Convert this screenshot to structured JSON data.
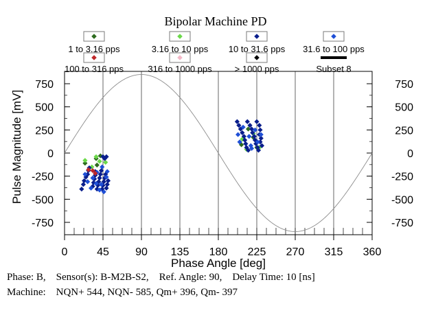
{
  "chart_data": {
    "type": "scatter",
    "title": "Bipolar Machine PD",
    "xlabel": "Phase Angle [deg]",
    "ylabel": "Pulse Magnitude [mV]",
    "xlim": [
      0,
      360
    ],
    "ylim": [
      -850,
      850
    ],
    "x_ticks": [
      0,
      45,
      90,
      135,
      180,
      225,
      270,
      315,
      360
    ],
    "y_ticks": [
      750,
      500,
      250,
      0,
      -250,
      -500,
      -750
    ],
    "x_tick_labels": [
      "0",
      "45",
      "90",
      "135",
      "180",
      "225",
      "270",
      "315",
      "360"
    ],
    "y_tick_labels": [
      "750",
      "500",
      "250",
      "0",
      "-250",
      "-500",
      "-750"
    ],
    "reference_sine": {
      "amplitude": 850,
      "phase_offset_deg": 0,
      "color": "#8c8c8c"
    },
    "legend": [
      {
        "label": "1 to 3.16 pps",
        "color": "#2e6b1f"
      },
      {
        "label": "3.16 to 10 pps",
        "color": "#6cd94a"
      },
      {
        "label": "10 to 31.6 pps",
        "color": "#0a1e8c"
      },
      {
        "label": "31.6 to 100 pps",
        "color": "#1f4fd6"
      },
      {
        "label": "100 to 316 pps",
        "color": "#c0282a"
      },
      {
        "label": "316 to 1000 pps",
        "color": "#f4b8c8"
      },
      {
        "label": "> 1000 pps",
        "color": "#000000"
      },
      {
        "label": "Subset 8",
        "color": "#000000"
      }
    ],
    "series": [
      {
        "name": "1 to 3.16 pps",
        "points": [
          [
            24,
            -110
          ],
          [
            37,
            -60
          ],
          [
            42,
            -30
          ],
          [
            207,
            90
          ],
          [
            225,
            60
          ],
          [
            215,
            260
          ],
          [
            221,
            170
          ],
          [
            38,
            -130
          ]
        ]
      },
      {
        "name": "3.16 to 10 pps",
        "points": [
          [
            24,
            -80
          ],
          [
            32,
            -150
          ],
          [
            41,
            -90
          ],
          [
            48,
            -100
          ],
          [
            37,
            -40
          ],
          [
            213,
            40
          ],
          [
            228,
            60
          ],
          [
            221,
            210
          ],
          [
            208,
            150
          ]
        ]
      },
      {
        "name": "10 to 31.6 pps",
        "points": [
          [
            20,
            -390
          ],
          [
            22,
            -340
          ],
          [
            23,
            -300
          ],
          [
            25,
            -260
          ],
          [
            27,
            -230
          ],
          [
            28,
            -190
          ],
          [
            29,
            -160
          ],
          [
            33,
            -360
          ],
          [
            34,
            -320
          ],
          [
            35,
            -280
          ],
          [
            36,
            -240
          ],
          [
            36,
            -200
          ],
          [
            38,
            -390
          ],
          [
            39,
            -350
          ],
          [
            40,
            -310
          ],
          [
            41,
            -270
          ],
          [
            42,
            -230
          ],
          [
            43,
            -190
          ],
          [
            44,
            -390
          ],
          [
            45,
            -350
          ],
          [
            46,
            -310
          ],
          [
            47,
            -270
          ],
          [
            48,
            -230
          ],
          [
            49,
            -380
          ],
          [
            50,
            -340
          ],
          [
            51,
            -300
          ],
          [
            45,
            -40
          ],
          [
            47,
            -60
          ],
          [
            49,
            -40
          ],
          [
            202,
            340
          ],
          [
            204,
            300
          ],
          [
            206,
            260
          ],
          [
            208,
            220
          ],
          [
            210,
            180
          ],
          [
            211,
            140
          ],
          [
            212,
            100
          ],
          [
            213,
            60
          ],
          [
            215,
            30
          ],
          [
            214,
            340
          ],
          [
            217,
            300
          ],
          [
            219,
            260
          ],
          [
            220,
            220
          ],
          [
            222,
            180
          ],
          [
            223,
            140
          ],
          [
            224,
            100
          ],
          [
            226,
            60
          ],
          [
            227,
            30
          ],
          [
            225,
            340
          ],
          [
            228,
            300
          ],
          [
            229,
            250
          ],
          [
            228,
            200
          ],
          [
            230,
            160
          ],
          [
            229,
            120
          ],
          [
            231,
            80
          ]
        ]
      },
      {
        "name": "31.6 to 100 pps",
        "points": [
          [
            24,
            -230
          ],
          [
            27,
            -310
          ],
          [
            31,
            -380
          ],
          [
            33,
            -270
          ],
          [
            37,
            -330
          ],
          [
            38,
            -210
          ],
          [
            41,
            -400
          ],
          [
            43,
            -340
          ],
          [
            44,
            -150
          ],
          [
            46,
            -420
          ],
          [
            49,
            -260
          ],
          [
            50,
            -200
          ],
          [
            203,
            200
          ],
          [
            205,
            120
          ],
          [
            209,
            280
          ],
          [
            216,
            180
          ],
          [
            218,
            80
          ],
          [
            223,
            250
          ],
          [
            226,
            120
          ],
          [
            230,
            200
          ],
          [
            219,
            50
          ]
        ]
      },
      {
        "name": "100 to 316 pps",
        "points": [
          [
            28,
            -180
          ],
          [
            33,
            -190
          ],
          [
            36,
            -220
          ]
        ]
      },
      {
        "name": "316 to 1000 pps",
        "points": []
      },
      {
        "name": "> 1000 pps",
        "points": []
      }
    ]
  },
  "footer": {
    "line1": "Phase: B,    Sensor(s): B-M2B-S2,    Ref. Angle: 90,    Delay Time: 10 [ns]",
    "line2": "Machine:    NQN+ 544, NQN- 585, Qm+ 396, Qm- 397"
  }
}
